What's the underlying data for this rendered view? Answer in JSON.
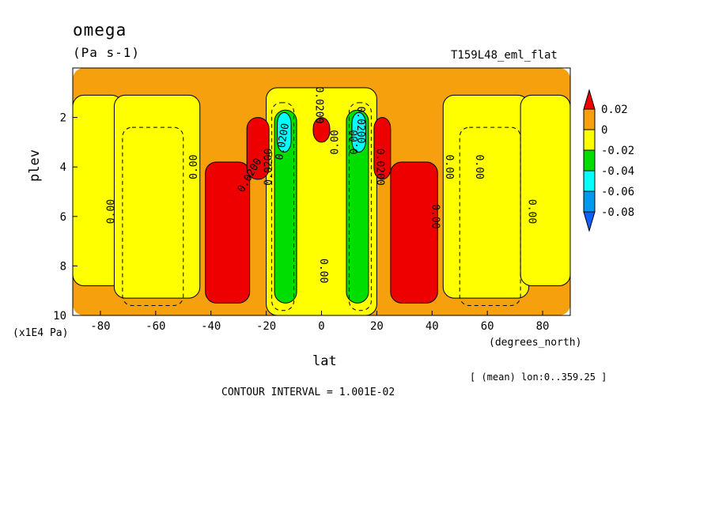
{
  "chart_data": {
    "type": "heatmap",
    "title": "omega",
    "units": "(Pa s-1)",
    "experiment": "T159L48_eml_flat",
    "xlabel": "lat",
    "x_units": "(degrees_north)",
    "ylabel": "plev",
    "y_units": "(x1E4 Pa)",
    "xlim": [
      -90,
      90
    ],
    "ylim": [
      10,
      0
    ],
    "x_ticks": [
      "-80",
      "-60",
      "-40",
      "-20",
      "0",
      "20",
      "40",
      "60",
      "80"
    ],
    "y_ticks": [
      "2",
      "4",
      "6",
      "8",
      "10"
    ],
    "averaging_note": "[ (mean) lon:0..359.25 ]",
    "contour_interval": "CONTOUR INTERVAL = 1.001E-02",
    "colorbar": {
      "labels": [
        "0.02",
        "0",
        "-0.02",
        "-0.04",
        "-0.06",
        "-0.08"
      ],
      "colors": {
        "above_0.02": "#ee0000",
        "0_to_0.02": "#f5a00c",
        "-0.02_to_0": "#ffff00",
        "-0.04_to_-0.02": "#00dd00",
        "-0.06_to_-0.04": "#00ffff",
        "-0.08_to_-0.06": "#0099ee",
        "below_-0.08": "#1060ff"
      }
    },
    "contour_labels": [
      "0.00",
      "0.00",
      "0.0200",
      "0.0200",
      "0.0200",
      "0.00",
      "0.00",
      "0.0200",
      "0.0200",
      "0.00",
      "0.00",
      "0.00",
      "0.00",
      "0.0200",
      "0.00"
    ],
    "regions": [
      {
        "level": "0_to_0.02",
        "lat": [
          -90,
          90
        ],
        "plev": [
          0,
          10
        ]
      },
      {
        "level": "-0.02_to_0",
        "lat": [
          -90,
          -72
        ],
        "plev": [
          1.1,
          8.8
        ]
      },
      {
        "level": "-0.02_to_0",
        "lat": [
          -75,
          -44
        ],
        "plev": [
          1.1,
          9.3
        ]
      },
      {
        "level": "-0.02_to_0",
        "lat": [
          -20,
          20
        ],
        "plev": [
          0.8,
          10
        ]
      },
      {
        "level": "-0.02_to_0",
        "lat": [
          44,
          75
        ],
        "plev": [
          1.1,
          9.3
        ]
      },
      {
        "level": "-0.02_to_0",
        "lat": [
          72,
          90
        ],
        "plev": [
          1.1,
          8.8
        ]
      },
      {
        "level": "above_0.02",
        "lat": [
          -42,
          -26
        ],
        "plev": [
          3.8,
          9.5
        ]
      },
      {
        "level": "above_0.02",
        "lat": [
          -27,
          -19
        ],
        "plev": [
          2.0,
          4.5
        ]
      },
      {
        "level": "above_0.02",
        "lat": [
          -3,
          3
        ],
        "plev": [
          2.0,
          3.0
        ]
      },
      {
        "level": "above_0.02",
        "lat": [
          19,
          25
        ],
        "plev": [
          2.0,
          4.5
        ]
      },
      {
        "level": "above_0.02",
        "lat": [
          25,
          42
        ],
        "plev": [
          3.8,
          9.5
        ]
      },
      {
        "level": "-0.04_to_-0.02",
        "lat": [
          -17,
          -9
        ],
        "plev": [
          1.7,
          9.5
        ]
      },
      {
        "level": "-0.04_to_-0.02",
        "lat": [
          9,
          17
        ],
        "plev": [
          1.7,
          9.5
        ]
      },
      {
        "level": "-0.06_to_-0.04",
        "lat": [
          -16,
          -11
        ],
        "plev": [
          1.8,
          3.4
        ]
      },
      {
        "level": "-0.06_to_-0.04",
        "lat": [
          11,
          16
        ],
        "plev": [
          1.8,
          3.4
        ]
      }
    ]
  }
}
